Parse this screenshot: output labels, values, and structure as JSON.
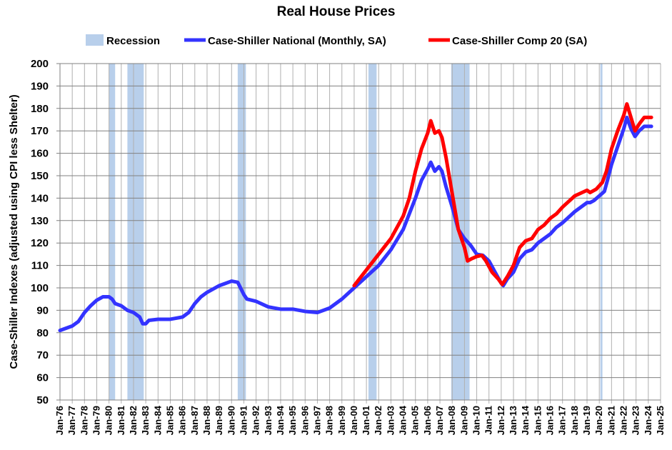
{
  "chart_data": {
    "type": "line",
    "title": "Real House Prices",
    "ylabel": "Case-Shiller Indexes (adjusted using CPI less Shelter)",
    "xlabel": "",
    "ylim": [
      50,
      200
    ],
    "yticks": [
      50,
      60,
      70,
      80,
      90,
      100,
      110,
      120,
      130,
      140,
      150,
      160,
      170,
      180,
      190,
      200
    ],
    "xlim": [
      "1976-01",
      "2025-01"
    ],
    "xticks": [
      "Jan-76",
      "Jan-77",
      "Jan-78",
      "Jan-79",
      "Jan-80",
      "Jan-81",
      "Jan-82",
      "Jan-83",
      "Jan-84",
      "Jan-85",
      "Jan-86",
      "Jan-87",
      "Jan-88",
      "Jan-89",
      "Jan-90",
      "Jan-91",
      "Jan-92",
      "Jan-93",
      "Jan-94",
      "Jan-95",
      "Jan-96",
      "Jan-97",
      "Jan-98",
      "Jan-99",
      "Jan-00",
      "Jan-01",
      "Jan-02",
      "Jan-03",
      "Jan-04",
      "Jan-05",
      "Jan-06",
      "Jan-07",
      "Jan-08",
      "Jan-09",
      "Jan-10",
      "Jan-11",
      "Jan-12",
      "Jan-13",
      "Jan-14",
      "Jan-15",
      "Jan-16",
      "Jan-17",
      "Jan-18",
      "Jan-19",
      "Jan-20",
      "Jan-21",
      "Jan-22",
      "Jan-23",
      "Jan-24",
      "Jan-25"
    ],
    "grid": true,
    "legend": "top",
    "recession": {
      "name": "Recession",
      "color": "#b8cfeb",
      "periods": [
        [
          "1980-01",
          "1980-07"
        ],
        [
          "1981-07",
          "1982-11"
        ],
        [
          "1990-07",
          "1991-03"
        ],
        [
          "2001-03",
          "2001-11"
        ],
        [
          "2007-12",
          "2009-06"
        ],
        [
          "2020-02",
          "2020-04"
        ]
      ]
    },
    "series": [
      {
        "name": "Case-Shiller National (Monthly, SA)",
        "color": "#3333ff",
        "points": [
          [
            "1976-01",
            81
          ],
          [
            "1977-01",
            83
          ],
          [
            "1977-07",
            85
          ],
          [
            "1978-01",
            89
          ],
          [
            "1978-07",
            92
          ],
          [
            "1979-01",
            94.5
          ],
          [
            "1979-07",
            96
          ],
          [
            "1980-01",
            96
          ],
          [
            "1980-04",
            95
          ],
          [
            "1980-07",
            93
          ],
          [
            "1981-01",
            92
          ],
          [
            "1981-07",
            90
          ],
          [
            "1982-01",
            89
          ],
          [
            "1982-07",
            87
          ],
          [
            "1982-10",
            84
          ],
          [
            "1983-01",
            84
          ],
          [
            "1983-04",
            85.5
          ],
          [
            "1984-01",
            86
          ],
          [
            "1985-01",
            86
          ],
          [
            "1986-01",
            87
          ],
          [
            "1986-07",
            89
          ],
          [
            "1987-01",
            93
          ],
          [
            "1987-07",
            96
          ],
          [
            "1988-01",
            98
          ],
          [
            "1988-07",
            99.5
          ],
          [
            "1989-01",
            101
          ],
          [
            "1989-07",
            102
          ],
          [
            "1990-01",
            103
          ],
          [
            "1990-07",
            102.5
          ],
          [
            "1991-01",
            97
          ],
          [
            "1991-04",
            95
          ],
          [
            "1992-01",
            94
          ],
          [
            "1993-01",
            91.5
          ],
          [
            "1994-01",
            90.5
          ],
          [
            "1995-01",
            90.5
          ],
          [
            "1996-01",
            89.5
          ],
          [
            "1997-01",
            89
          ],
          [
            "1998-01",
            91
          ],
          [
            "1999-01",
            95
          ],
          [
            "2000-01",
            100
          ],
          [
            "2001-01",
            105
          ],
          [
            "2002-01",
            110
          ],
          [
            "2003-01",
            117
          ],
          [
            "2004-01",
            126
          ],
          [
            "2004-07",
            133
          ],
          [
            "2005-01",
            140
          ],
          [
            "2005-07",
            148
          ],
          [
            "2006-01",
            153
          ],
          [
            "2006-04",
            156
          ],
          [
            "2006-08",
            152
          ],
          [
            "2006-12",
            154
          ],
          [
            "2007-03",
            152
          ],
          [
            "2007-07",
            145
          ],
          [
            "2008-01",
            136
          ],
          [
            "2008-07",
            126
          ],
          [
            "2009-01",
            122
          ],
          [
            "2009-07",
            119
          ],
          [
            "2010-01",
            115
          ],
          [
            "2010-07",
            114.5
          ],
          [
            "2011-01",
            112
          ],
          [
            "2011-07",
            107
          ],
          [
            "2012-01",
            102
          ],
          [
            "2012-03",
            101
          ],
          [
            "2012-07",
            104
          ],
          [
            "2013-01",
            107
          ],
          [
            "2013-07",
            113
          ],
          [
            "2014-01",
            116
          ],
          [
            "2014-07",
            117
          ],
          [
            "2015-01",
            120
          ],
          [
            "2015-07",
            122
          ],
          [
            "2016-01",
            124
          ],
          [
            "2016-07",
            127
          ],
          [
            "2017-01",
            129
          ],
          [
            "2018-01",
            134
          ],
          [
            "2019-01",
            138
          ],
          [
            "2019-04",
            138
          ],
          [
            "2019-08",
            139
          ],
          [
            "2020-01",
            141
          ],
          [
            "2020-06",
            143
          ],
          [
            "2020-09",
            148
          ],
          [
            "2021-01",
            155
          ],
          [
            "2021-07",
            163
          ],
          [
            "2022-01",
            171
          ],
          [
            "2022-04",
            176
          ],
          [
            "2022-08",
            171
          ],
          [
            "2022-12",
            167.5
          ],
          [
            "2023-04",
            170
          ],
          [
            "2023-09",
            172
          ],
          [
            "2024-04",
            172
          ]
        ]
      },
      {
        "name": "Case-Shiller Comp 20  (SA)",
        "color": "#ff0000",
        "points": [
          [
            "2000-01",
            101
          ],
          [
            "2001-01",
            108
          ],
          [
            "2002-01",
            115
          ],
          [
            "2003-01",
            122
          ],
          [
            "2004-01",
            132
          ],
          [
            "2004-07",
            140
          ],
          [
            "2005-01",
            152
          ],
          [
            "2005-07",
            162
          ],
          [
            "2006-01",
            169
          ],
          [
            "2006-04",
            174.5
          ],
          [
            "2006-08",
            169
          ],
          [
            "2006-12",
            170
          ],
          [
            "2007-03",
            167
          ],
          [
            "2007-07",
            158
          ],
          [
            "2008-01",
            142
          ],
          [
            "2008-07",
            126
          ],
          [
            "2009-01",
            118
          ],
          [
            "2009-04",
            112
          ],
          [
            "2009-08",
            113
          ],
          [
            "2010-01",
            114
          ],
          [
            "2010-06",
            114.5
          ],
          [
            "2010-10",
            112
          ],
          [
            "2011-04",
            107
          ],
          [
            "2011-10",
            104
          ],
          [
            "2012-02",
            101.5
          ],
          [
            "2012-07",
            105
          ],
          [
            "2013-01",
            110
          ],
          [
            "2013-07",
            118
          ],
          [
            "2014-01",
            121
          ],
          [
            "2014-07",
            122
          ],
          [
            "2015-01",
            126
          ],
          [
            "2015-07",
            128
          ],
          [
            "2016-01",
            131
          ],
          [
            "2016-07",
            133
          ],
          [
            "2017-01",
            136
          ],
          [
            "2018-01",
            141
          ],
          [
            "2019-01",
            143.5
          ],
          [
            "2019-04",
            142.5
          ],
          [
            "2019-10",
            144
          ],
          [
            "2020-04",
            147
          ],
          [
            "2020-08",
            152
          ],
          [
            "2021-01",
            162
          ],
          [
            "2021-07",
            170
          ],
          [
            "2022-01",
            177
          ],
          [
            "2022-04",
            182
          ],
          [
            "2022-08",
            176
          ],
          [
            "2022-12",
            170
          ],
          [
            "2023-04",
            173
          ],
          [
            "2023-09",
            176
          ],
          [
            "2024-04",
            176
          ]
        ]
      }
    ]
  }
}
